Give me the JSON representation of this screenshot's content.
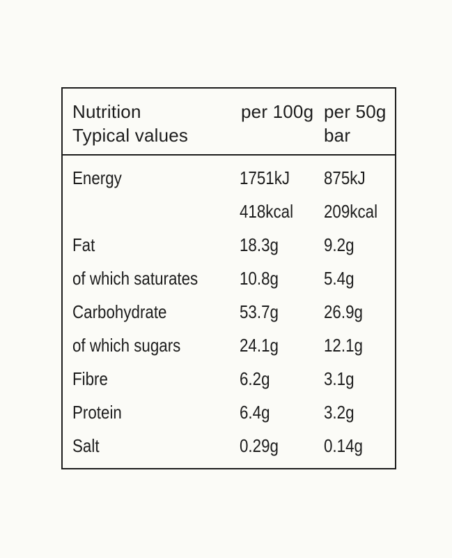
{
  "table": {
    "header": {
      "label_line1": "Nutrition",
      "label_line2": "Typical values",
      "col1": "per 100g",
      "col2_line1": "per 50g",
      "col2_line2": "bar"
    },
    "rows": [
      {
        "label": "Energy",
        "per100": "1751kJ",
        "perbar": "875kJ"
      },
      {
        "label": "",
        "per100": "418kcal",
        "perbar": "209kcal"
      },
      {
        "label": "Fat",
        "per100": "18.3g",
        "perbar": "9.2g"
      },
      {
        "label": "of which saturates",
        "per100": "10.8g",
        "perbar": "5.4g"
      },
      {
        "label": "Carbohydrate",
        "per100": "53.7g",
        "perbar": "26.9g"
      },
      {
        "label": "of which sugars",
        "per100": "24.1g",
        "perbar": "12.1g"
      },
      {
        "label": "Fibre",
        "per100": "6.2g",
        "perbar": "3.1g"
      },
      {
        "label": "Protein",
        "per100": "6.4g",
        "perbar": "3.2g"
      },
      {
        "label": "Salt",
        "per100": "0.29g",
        "perbar": "0.14g"
      }
    ]
  }
}
